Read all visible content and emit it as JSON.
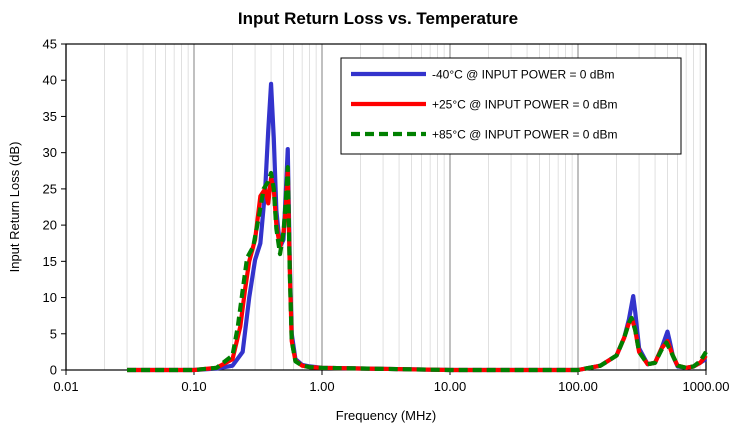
{
  "chart_data": {
    "type": "line",
    "title": "Input Return Loss vs. Temperature",
    "xlabel": "Frequency (MHz)",
    "ylabel": "Input Return  Loss (dB)",
    "xscale": "log",
    "xlim": [
      0.01,
      1000
    ],
    "ylim": [
      0,
      45
    ],
    "x_ticks": [
      0.01,
      0.1,
      1,
      10,
      100,
      1000
    ],
    "x_tick_labels": [
      "0.01",
      "0.10",
      "1.00",
      "10.00",
      "100.00",
      "1000.00"
    ],
    "y_ticks": [
      0,
      5,
      10,
      15,
      20,
      25,
      30,
      35,
      40,
      45
    ],
    "y_tick_labels": [
      "0",
      "5",
      "10",
      "15",
      "20",
      "25",
      "30",
      "35",
      "40",
      "45"
    ],
    "grid": true,
    "legend_position": "top-right",
    "series": [
      {
        "name": "-40°C @ INPUT POWER = 0 dBm",
        "color": "#3333CC",
        "style": "solid",
        "x": [
          0.03,
          0.1,
          0.15,
          0.2,
          0.24,
          0.27,
          0.3,
          0.33,
          0.36,
          0.38,
          0.4,
          0.42,
          0.44,
          0.47,
          0.5,
          0.52,
          0.54,
          0.56,
          0.58,
          0.62,
          0.7,
          0.8,
          1,
          10,
          100,
          150,
          200,
          230,
          250,
          270,
          280,
          300,
          350,
          400,
          450,
          500,
          520,
          550,
          600,
          700,
          800,
          900,
          1000
        ],
        "y": [
          0,
          0,
          0.2,
          0.6,
          2.5,
          10,
          15.2,
          17.5,
          25,
          33,
          39.5,
          32,
          22,
          17,
          18,
          24,
          30.5,
          15,
          5,
          1.5,
          0.7,
          0.5,
          0.3,
          0,
          0,
          0.6,
          2,
          4.5,
          7,
          10.2,
          8,
          3,
          0.8,
          1,
          3,
          5.3,
          4,
          2,
          0.5,
          0.3,
          0.5,
          1,
          1.5
        ]
      },
      {
        "name": "+25°C @ INPUT POWER = 0 dBm",
        "color": "#FF0000",
        "style": "solid",
        "x": [
          0.03,
          0.1,
          0.15,
          0.2,
          0.23,
          0.25,
          0.27,
          0.3,
          0.33,
          0.36,
          0.38,
          0.4,
          0.42,
          0.44,
          0.47,
          0.5,
          0.52,
          0.54,
          0.56,
          0.58,
          0.62,
          0.7,
          0.8,
          1,
          10,
          100,
          150,
          200,
          230,
          250,
          265,
          280,
          300,
          350,
          400,
          450,
          500,
          550,
          600,
          700,
          800,
          900,
          1000
        ],
        "y": [
          0,
          0,
          0.3,
          1.5,
          6,
          11,
          15,
          18,
          24,
          25,
          23,
          26.5,
          25,
          20,
          17,
          19,
          22,
          27.5,
          14,
          4,
          1.3,
          0.6,
          0.4,
          0.3,
          0,
          0,
          0.6,
          2,
          4.5,
          6.5,
          7,
          5.5,
          2.5,
          0.8,
          1,
          3,
          4,
          2,
          0.6,
          0.3,
          0.5,
          1,
          2
        ]
      },
      {
        "name": "+85°C @ INPUT POWER = 0 dBm",
        "color": "#008000",
        "style": "dashed",
        "x": [
          0.03,
          0.1,
          0.15,
          0.2,
          0.22,
          0.24,
          0.26,
          0.29,
          0.32,
          0.35,
          0.38,
          0.4,
          0.42,
          0.44,
          0.47,
          0.5,
          0.52,
          0.54,
          0.56,
          0.58,
          0.62,
          0.7,
          0.8,
          1,
          10,
          100,
          150,
          200,
          230,
          250,
          262,
          280,
          300,
          350,
          400,
          450,
          490,
          550,
          600,
          700,
          800,
          900,
          1000
        ],
        "y": [
          0,
          0,
          0.3,
          2,
          6,
          11,
          15.5,
          17,
          21,
          25,
          26,
          27.2,
          25,
          19.5,
          16,
          19,
          23,
          28,
          13.5,
          4,
          1.2,
          0.6,
          0.4,
          0.3,
          0,
          0,
          0.6,
          2,
          4.5,
          6.5,
          7.2,
          5.5,
          2.5,
          0.8,
          1,
          2.8,
          3.8,
          2,
          0.6,
          0.3,
          0.5,
          1.2,
          2.5
        ]
      }
    ]
  }
}
